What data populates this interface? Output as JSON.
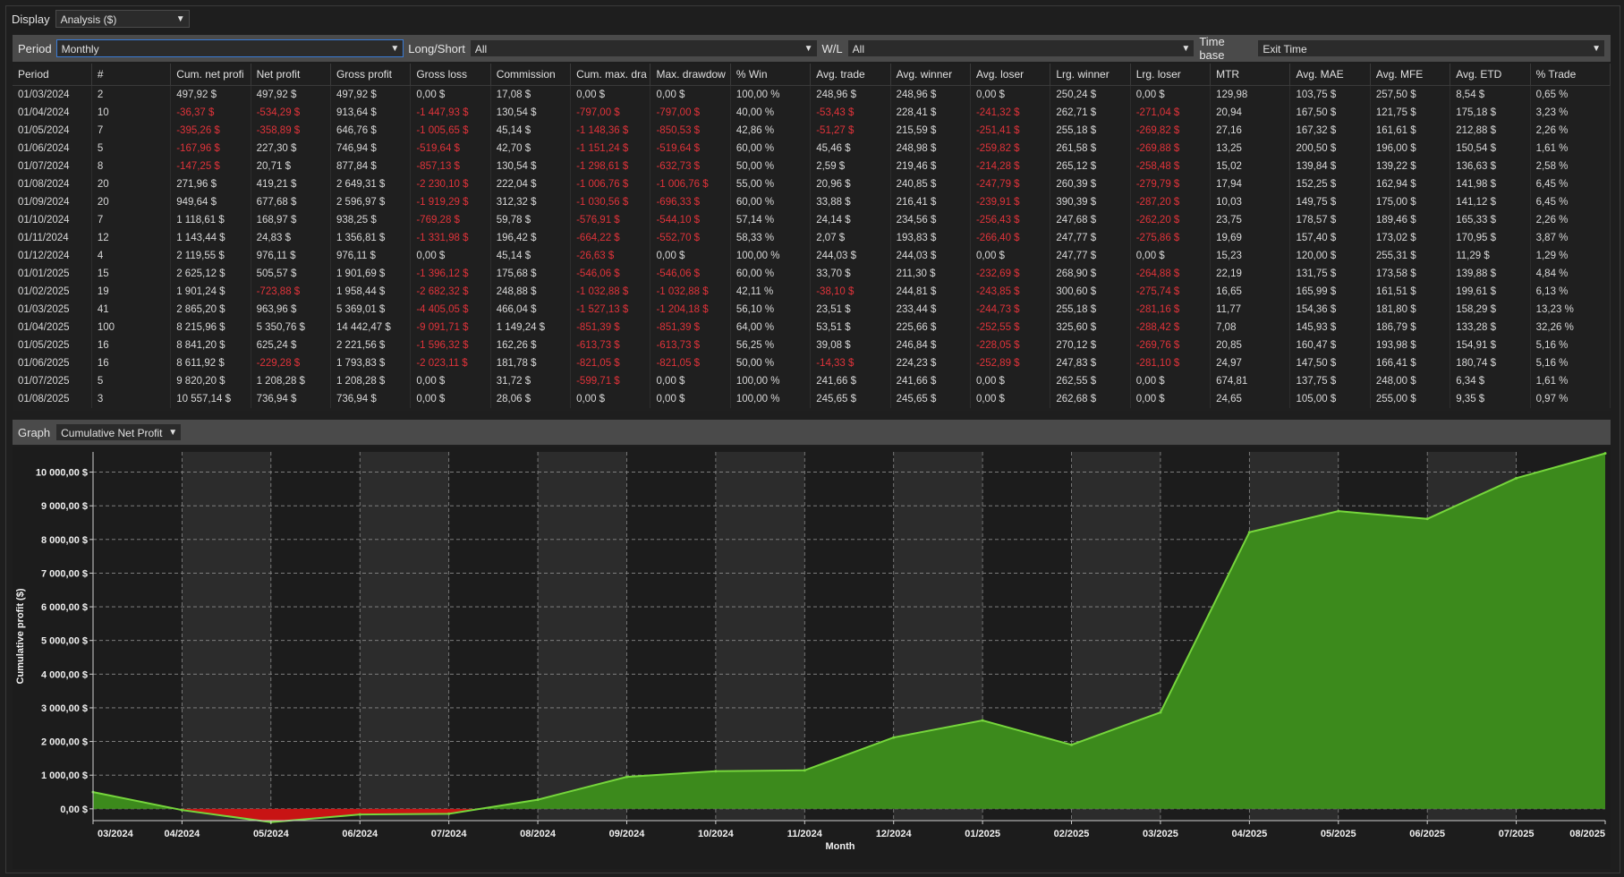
{
  "display": {
    "label": "Display",
    "value": "Analysis ($)"
  },
  "filters": {
    "period": {
      "label": "Period",
      "value": "Monthly"
    },
    "long_short": {
      "label": "Long/Short",
      "value": "All"
    },
    "wl": {
      "label": "W/L",
      "value": "All"
    },
    "time_base": {
      "label": "Time base",
      "value": "Exit Time"
    }
  },
  "table": {
    "columns": [
      "Period",
      "#",
      "Cum. net profi",
      "Net profit",
      "Gross profit",
      "Gross loss",
      "Commission",
      "Cum. max. dra",
      "Max. drawdow",
      "% Win",
      "Avg. trade",
      "Avg. winner",
      "Avg. loser",
      "Lrg. winner",
      "Lrg. loser",
      "MTR",
      "Avg. MAE",
      "Avg. MFE",
      "Avg. ETD",
      "% Trade"
    ],
    "rows": [
      [
        "01/03/2024",
        "2",
        "497,92 $",
        "497,92 $",
        "497,92 $",
        "0,00 $",
        "17,08 $",
        "0,00 $",
        "0,00 $",
        "100,00 %",
        "248,96 $",
        "248,96 $",
        "0,00 $",
        "250,24 $",
        "0,00 $",
        "129,98",
        "103,75 $",
        "257,50 $",
        "8,54 $",
        "0,65 %"
      ],
      [
        "01/04/2024",
        "10",
        "-36,37 $",
        "-534,29 $",
        "913,64 $",
        "-1 447,93 $",
        "130,54 $",
        "-797,00 $",
        "-797,00 $",
        "40,00 %",
        "-53,43 $",
        "228,41 $",
        "-241,32 $",
        "262,71 $",
        "-271,04 $",
        "20,94",
        "167,50 $",
        "121,75 $",
        "175,18 $",
        "3,23 %"
      ],
      [
        "01/05/2024",
        "7",
        "-395,26 $",
        "-358,89 $",
        "646,76 $",
        "-1 005,65 $",
        "45,14 $",
        "-1 148,36 $",
        "-850,53 $",
        "42,86 %",
        "-51,27 $",
        "215,59 $",
        "-251,41 $",
        "255,18 $",
        "-269,82 $",
        "27,16",
        "167,32 $",
        "161,61 $",
        "212,88 $",
        "2,26 %"
      ],
      [
        "01/06/2024",
        "5",
        "-167,96 $",
        "227,30 $",
        "746,94 $",
        "-519,64 $",
        "42,70 $",
        "-1 151,24 $",
        "-519,64 $",
        "60,00 %",
        "45,46 $",
        "248,98 $",
        "-259,82 $",
        "261,58 $",
        "-269,88 $",
        "13,25",
        "200,50 $",
        "196,00 $",
        "150,54 $",
        "1,61 %"
      ],
      [
        "01/07/2024",
        "8",
        "-147,25 $",
        "20,71 $",
        "877,84 $",
        "-857,13 $",
        "130,54 $",
        "-1 298,61 $",
        "-632,73 $",
        "50,00 %",
        "2,59 $",
        "219,46 $",
        "-214,28 $",
        "265,12 $",
        "-258,48 $",
        "15,02",
        "139,84 $",
        "139,22 $",
        "136,63 $",
        "2,58 %"
      ],
      [
        "01/08/2024",
        "20",
        "271,96 $",
        "419,21 $",
        "2 649,31 $",
        "-2 230,10 $",
        "222,04 $",
        "-1 006,76 $",
        "-1 006,76 $",
        "55,00 %",
        "20,96 $",
        "240,85 $",
        "-247,79 $",
        "260,39 $",
        "-279,79 $",
        "17,94",
        "152,25 $",
        "162,94 $",
        "141,98 $",
        "6,45 %"
      ],
      [
        "01/09/2024",
        "20",
        "949,64 $",
        "677,68 $",
        "2 596,97 $",
        "-1 919,29 $",
        "312,32 $",
        "-1 030,56 $",
        "-696,33 $",
        "60,00 %",
        "33,88 $",
        "216,41 $",
        "-239,91 $",
        "390,39 $",
        "-287,20 $",
        "10,03",
        "149,75 $",
        "175,00 $",
        "141,12 $",
        "6,45 %"
      ],
      [
        "01/10/2024",
        "7",
        "1 118,61 $",
        "168,97 $",
        "938,25 $",
        "-769,28 $",
        "59,78 $",
        "-576,91 $",
        "-544,10 $",
        "57,14 %",
        "24,14 $",
        "234,56 $",
        "-256,43 $",
        "247,68 $",
        "-262,20 $",
        "23,75",
        "178,57 $",
        "189,46 $",
        "165,33 $",
        "2,26 %"
      ],
      [
        "01/11/2024",
        "12",
        "1 143,44 $",
        "24,83 $",
        "1 356,81 $",
        "-1 331,98 $",
        "196,42 $",
        "-664,22 $",
        "-552,70 $",
        "58,33 %",
        "2,07 $",
        "193,83 $",
        "-266,40 $",
        "247,77 $",
        "-275,86 $",
        "19,69",
        "157,40 $",
        "173,02 $",
        "170,95 $",
        "3,87 %"
      ],
      [
        "01/12/2024",
        "4",
        "2 119,55 $",
        "976,11 $",
        "976,11 $",
        "0,00 $",
        "45,14 $",
        "-26,63 $",
        "0,00 $",
        "100,00 %",
        "244,03 $",
        "244,03 $",
        "0,00 $",
        "247,77 $",
        "0,00 $",
        "15,23",
        "120,00 $",
        "255,31 $",
        "11,29 $",
        "1,29 %"
      ],
      [
        "01/01/2025",
        "15",
        "2 625,12 $",
        "505,57 $",
        "1 901,69 $",
        "-1 396,12 $",
        "175,68 $",
        "-546,06 $",
        "-546,06 $",
        "60,00 %",
        "33,70 $",
        "211,30 $",
        "-232,69 $",
        "268,90 $",
        "-264,88 $",
        "22,19",
        "131,75 $",
        "173,58 $",
        "139,88 $",
        "4,84 %"
      ],
      [
        "01/02/2025",
        "19",
        "1 901,24 $",
        "-723,88 $",
        "1 958,44 $",
        "-2 682,32 $",
        "248,88 $",
        "-1 032,88 $",
        "-1 032,88 $",
        "42,11 %",
        "-38,10 $",
        "244,81 $",
        "-243,85 $",
        "300,60 $",
        "-275,74 $",
        "16,65",
        "165,99 $",
        "161,51 $",
        "199,61 $",
        "6,13 %"
      ],
      [
        "01/03/2025",
        "41",
        "2 865,20 $",
        "963,96 $",
        "5 369,01 $",
        "-4 405,05 $",
        "466,04 $",
        "-1 527,13 $",
        "-1 204,18 $",
        "56,10 %",
        "23,51 $",
        "233,44 $",
        "-244,73 $",
        "255,18 $",
        "-281,16 $",
        "11,77",
        "154,36 $",
        "181,80 $",
        "158,29 $",
        "13,23 %"
      ],
      [
        "01/04/2025",
        "100",
        "8 215,96 $",
        "5 350,76 $",
        "14 442,47 $",
        "-9 091,71 $",
        "1 149,24 $",
        "-851,39 $",
        "-851,39 $",
        "64,00 %",
        "53,51 $",
        "225,66 $",
        "-252,55 $",
        "325,60 $",
        "-288,42 $",
        "7,08",
        "145,93 $",
        "186,79 $",
        "133,28 $",
        "32,26 %"
      ],
      [
        "01/05/2025",
        "16",
        "8 841,20 $",
        "625,24 $",
        "2 221,56 $",
        "-1 596,32 $",
        "162,26 $",
        "-613,73 $",
        "-613,73 $",
        "56,25 %",
        "39,08 $",
        "246,84 $",
        "-228,05 $",
        "270,12 $",
        "-269,76 $",
        "20,85",
        "160,47 $",
        "193,98 $",
        "154,91 $",
        "5,16 %"
      ],
      [
        "01/06/2025",
        "16",
        "8 611,92 $",
        "-229,28 $",
        "1 793,83 $",
        "-2 023,11 $",
        "181,78 $",
        "-821,05 $",
        "-821,05 $",
        "50,00 %",
        "-14,33 $",
        "224,23 $",
        "-252,89 $",
        "247,83 $",
        "-281,10 $",
        "24,97",
        "147,50 $",
        "166,41 $",
        "180,74 $",
        "5,16 %"
      ],
      [
        "01/07/2025",
        "5",
        "9 820,20 $",
        "1 208,28 $",
        "1 208,28 $",
        "0,00 $",
        "31,72 $",
        "-599,71 $",
        "0,00 $",
        "100,00 %",
        "241,66 $",
        "241,66 $",
        "0,00 $",
        "262,55 $",
        "0,00 $",
        "674,81",
        "137,75 $",
        "248,00 $",
        "6,34 $",
        "1,61 %"
      ],
      [
        "01/08/2025",
        "3",
        "10 557,14 $",
        "736,94 $",
        "736,94 $",
        "0,00 $",
        "28,06 $",
        "0,00 $",
        "0,00 $",
        "100,00 %",
        "245,65 $",
        "245,65 $",
        "0,00 $",
        "262,68 $",
        "0,00 $",
        "24,65",
        "105,00 $",
        "255,00 $",
        "9,35 $",
        "0,97 %"
      ]
    ]
  },
  "graph": {
    "label": "Graph",
    "value": "Cumulative Net Profit"
  },
  "chart_data": {
    "type": "area",
    "title": "",
    "xlabel": "Month",
    "ylabel": "Cumulative profit ($)",
    "categories": [
      "03/2024",
      "04/2024",
      "05/2024",
      "06/2024",
      "07/2024",
      "08/2024",
      "09/2024",
      "10/2024",
      "11/2024",
      "12/2024",
      "01/2025",
      "02/2025",
      "03/2025",
      "04/2025",
      "05/2025",
      "06/2025",
      "07/2025",
      "08/2025"
    ],
    "x_tick_labels": [
      "03/2024",
      "04/2024",
      "05/2024",
      "06/2024",
      "07/2024",
      "08/2024",
      "09/2024",
      "10/2024",
      "11/2024",
      "12/2024",
      "01/2025",
      "02/2025",
      "03/2025",
      "04/2025",
      "05/2025",
      "06/2025",
      "07/2025",
      "08/2025"
    ],
    "series": [
      {
        "values": [
          497.92,
          -36.37,
          -395.26,
          -167.96,
          -147.25,
          271.96,
          949.64,
          1118.61,
          1143.44,
          2119.55,
          2625.12,
          1901.24,
          2865.2,
          8215.96,
          8841.2,
          8611.92,
          9820.2,
          10557.14
        ]
      }
    ],
    "ylim": [
      -350,
      10600
    ],
    "y_tick_values": [
      0,
      1000,
      2000,
      3000,
      4000,
      5000,
      6000,
      7000,
      8000,
      9000,
      10000
    ],
    "y_tick_labels": [
      "0,00 $",
      "1 000,00 $",
      "2 000,00 $",
      "3 000,00 $",
      "4 000,00 $",
      "5 000,00 $",
      "6 000,00 $",
      "7 000,00 $",
      "8 000,00 $",
      "9 000,00 $",
      "10 000,00 $"
    ],
    "grid": true,
    "colors": {
      "positive_fill": "#3c8a1c",
      "positive_line": "#76d63c",
      "negative_fill": "#c81414",
      "band": "#2c2c2c",
      "plot_bg": "#1c1c1c"
    }
  }
}
